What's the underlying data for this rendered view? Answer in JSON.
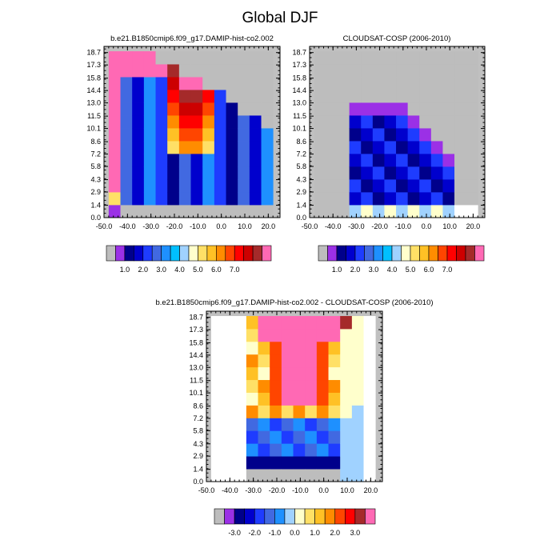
{
  "title": "Global DJF",
  "chart_data": [
    {
      "type": "heatmap",
      "title": "b.e21.B1850cmip6.f09_g17.DAMIP-hist-co2.002",
      "x_ticks": [
        "-50.0",
        "-40.0",
        "-30.0",
        "-20.0",
        "-10.0",
        "0.0",
        "10.0",
        "20.0"
      ],
      "y_ticks": [
        "0.0",
        "1.4",
        "2.9",
        "4.3",
        "5.8",
        "7.2",
        "8.6",
        "10.1",
        "11.5",
        "13.0",
        "14.4",
        "15.8",
        "17.3",
        "18.7"
      ],
      "xlim": [
        -50,
        25
      ],
      "ylim": [
        0,
        19.4
      ],
      "colorbar_labels": [
        "1.0",
        "2.0",
        "3.0",
        "4.0",
        "5.0",
        "6.0",
        "7.0"
      ]
    },
    {
      "type": "heatmap",
      "title": "CLOUDSAT-COSP (2006-2010)",
      "x_ticks": [
        "-50.0",
        "-40.0",
        "-30.0",
        "-20.0",
        "-10.0",
        "0.0",
        "10.0",
        "20.0"
      ],
      "y_ticks": [
        "0.0",
        "1.4",
        "2.9",
        "4.3",
        "5.8",
        "7.2",
        "8.6",
        "10.1",
        "11.5",
        "13.0",
        "14.4",
        "15.8",
        "17.3",
        "18.7"
      ],
      "xlim": [
        -50,
        25
      ],
      "ylim": [
        0,
        19.4
      ],
      "colorbar_labels": [
        "1.0",
        "2.0",
        "3.0",
        "4.0",
        "5.0",
        "6.0",
        "7.0"
      ]
    },
    {
      "type": "heatmap",
      "title": "b.e21.B1850cmip6.f09_g17.DAMIP-hist-co2.002 - CLOUDSAT-COSP (2006-2010)",
      "x_ticks": [
        "-50.0",
        "-40.0",
        "-30.0",
        "-20.0",
        "-10.0",
        "0.0",
        "10.0",
        "20.0"
      ],
      "y_ticks": [
        "0.0",
        "1.4",
        "2.9",
        "4.3",
        "5.8",
        "7.2",
        "8.6",
        "10.1",
        "11.5",
        "13.0",
        "14.4",
        "15.8",
        "17.3",
        "18.7"
      ],
      "xlim": [
        -50,
        25
      ],
      "ylim": [
        0,
        19.4
      ],
      "colorbar_labels": [
        "-3.0",
        "-2.0",
        "-1.0",
        "0.0",
        "1.0",
        "2.0",
        "3.0"
      ]
    }
  ],
  "palettes": {
    "abs": [
      "#bdbdbd",
      "#9b30e6",
      "#00008b",
      "#0000cd",
      "#1e3cff",
      "#4169e1",
      "#1e90ff",
      "#00bfff",
      "#a0d2ff",
      "#ffffcc",
      "#ffe066",
      "#ffc125",
      "#ff8c00",
      "#ff4500",
      "#ff0000",
      "#cd0000",
      "#a52a2a",
      "#ff69b4"
    ],
    "diff": [
      "#bdbdbd",
      "#9b30e6",
      "#00008b",
      "#0000cd",
      "#1e3cff",
      "#4169e1",
      "#1e90ff",
      "#a0d2ff",
      "#ffffcc",
      "#ffe066",
      "#ffc125",
      "#ff8c00",
      "#ff4500",
      "#ff0000",
      "#a52a2a",
      "#ff69b4"
    ]
  }
}
